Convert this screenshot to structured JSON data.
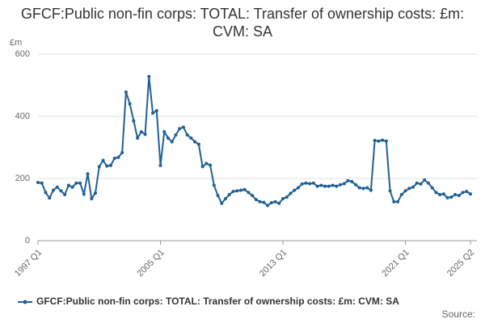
{
  "chart_data": {
    "type": "line",
    "title": "GFCF:Public non-fin corps: TOTAL: Transfer of ownership costs: £m: CVM: SA",
    "y_label": "£m",
    "source": "Source:",
    "categories": [
      "1997 Q1",
      null,
      null,
      null,
      null,
      null,
      null,
      null,
      null,
      null,
      null,
      null,
      null,
      null,
      null,
      null,
      null,
      null,
      null,
      null,
      null,
      null,
      null,
      null,
      null,
      null,
      null,
      null,
      null,
      null,
      null,
      null,
      "2005 Q1",
      null,
      null,
      null,
      null,
      null,
      null,
      null,
      null,
      null,
      null,
      null,
      null,
      null,
      null,
      null,
      null,
      null,
      null,
      null,
      null,
      null,
      null,
      null,
      null,
      null,
      null,
      null,
      null,
      null,
      null,
      null,
      "2013 Q1",
      null,
      null,
      null,
      null,
      null,
      null,
      null,
      null,
      null,
      null,
      null,
      null,
      null,
      null,
      null,
      null,
      null,
      null,
      null,
      null,
      null,
      null,
      null,
      null,
      null,
      null,
      null,
      null,
      null,
      null,
      null,
      "2021 Q1",
      null,
      null,
      null,
      null,
      null,
      null,
      null,
      null,
      null,
      null,
      null,
      null,
      null,
      null,
      null,
      null,
      "2025 Q2"
    ],
    "series": [
      {
        "name": "GFCF:Public non-fin corps: TOTAL: Transfer of ownership costs: £m: CVM: SA",
        "color": "#206095",
        "values": [
          187,
          185,
          155,
          137,
          162,
          172,
          160,
          148,
          178,
          172,
          185,
          185,
          150,
          215,
          135,
          153,
          238,
          258,
          240,
          242,
          265,
          268,
          283,
          478,
          440,
          385,
          330,
          350,
          342,
          528,
          410,
          418,
          242,
          350,
          330,
          318,
          340,
          360,
          365,
          340,
          330,
          318,
          310,
          238,
          248,
          243,
          178,
          145,
          120,
          135,
          148,
          158,
          160,
          162,
          164,
          155,
          145,
          132,
          125,
          123,
          113,
          122,
          125,
          120,
          135,
          140,
          152,
          162,
          170,
          182,
          185,
          183,
          185,
          175,
          178,
          175,
          175,
          178,
          175,
          180,
          183,
          193,
          190,
          180,
          170,
          168,
          170,
          162,
          322,
          320,
          323,
          320,
          160,
          125,
          125,
          148,
          160,
          168,
          172,
          185,
          182,
          195,
          185,
          170,
          155,
          148,
          150,
          138,
          140,
          148,
          145,
          155,
          158,
          150
        ]
      }
    ],
    "ylim": [
      0,
      600
    ],
    "yticks": [
      0,
      200,
      400,
      600
    ],
    "grid": true
  }
}
